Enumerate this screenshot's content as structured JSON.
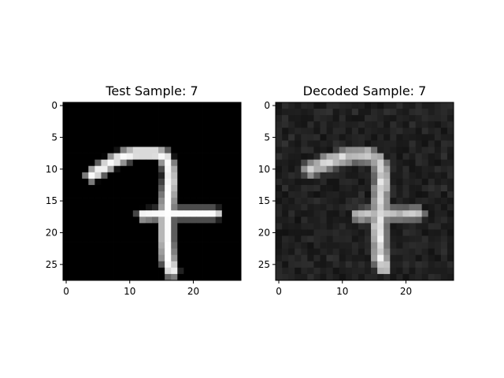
{
  "chart_data": [
    {
      "type": "heatmap",
      "title": "Test Sample: 7",
      "colormap": "gray",
      "shape": [
        28,
        28
      ],
      "xlim": [
        -0.5,
        27.5
      ],
      "ylim": [
        27.5,
        -0.5
      ],
      "x_ticks": [
        0,
        10,
        20
      ],
      "y_ticks": [
        0,
        5,
        10,
        15,
        20,
        25
      ],
      "strokes": [
        {
          "points": [
            [
              4,
              11
            ],
            [
              7,
              9
            ],
            [
              9,
              8
            ],
            [
              11,
              7.5
            ],
            [
              13,
              7.5
            ],
            [
              14,
              7.5
            ],
            [
              15.5,
              8
            ],
            [
              16,
              9
            ],
            [
              16.3,
              10.5
            ],
            [
              16.3,
              12
            ]
          ],
          "value": 0.98,
          "width": 1.4
        },
        {
          "points": [
            [
              16.3,
              12
            ],
            [
              16,
              15
            ],
            [
              15.8,
              18
            ],
            [
              15.8,
              21
            ],
            [
              16,
              24
            ],
            [
              16.6,
              26
            ]
          ],
          "value": 1.0,
          "width": 1.5
        },
        {
          "points": [
            [
              12,
              17.2
            ],
            [
              16,
              17
            ],
            [
              20,
              17
            ],
            [
              23.5,
              17
            ]
          ],
          "value": 0.98,
          "width": 1.2
        }
      ]
    },
    {
      "type": "heatmap",
      "title": "Decoded Sample: 7",
      "colormap": "gray",
      "shape": [
        28,
        28
      ],
      "xlim": [
        -0.5,
        27.5
      ],
      "ylim": [
        27.5,
        -0.5
      ],
      "x_ticks": [
        0,
        10,
        20
      ],
      "y_ticks": [
        0,
        5,
        10,
        15,
        20,
        25
      ],
      "background_level": 0.13,
      "strokes": [
        {
          "points": [
            [
              5,
              10
            ],
            [
              7.5,
              9
            ],
            [
              10,
              8.2
            ],
            [
              12,
              7.8
            ],
            [
              14,
              7.8
            ],
            [
              15.5,
              8.5
            ],
            [
              16.2,
              10
            ],
            [
              16.2,
              12
            ]
          ],
          "value": 0.82,
          "width": 1.7
        },
        {
          "points": [
            [
              16.2,
              12
            ],
            [
              16,
              15
            ],
            [
              15.8,
              18
            ],
            [
              15.8,
              21
            ],
            [
              16,
              24
            ],
            [
              16.5,
              25.5
            ]
          ],
          "value": 0.9,
          "width": 1.7
        },
        {
          "points": [
            [
              12.5,
              17.2
            ],
            [
              16,
              17
            ],
            [
              19.5,
              17
            ],
            [
              22,
              17
            ]
          ],
          "value": 0.75,
          "width": 1.5
        }
      ]
    }
  ]
}
